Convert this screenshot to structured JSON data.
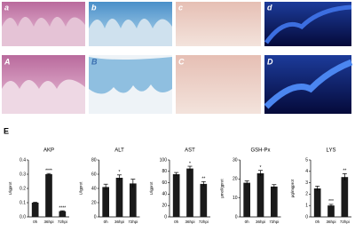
{
  "panels": [
    "a",
    "b",
    "c",
    "d",
    "A",
    "B",
    "C",
    "D"
  ],
  "figure_label": "E",
  "chart_data": [
    {
      "type": "bar",
      "title": "AKP",
      "y_label": "U/gprot",
      "color": "#1a1a1a",
      "categories": [
        "0h",
        "36hpi",
        "72hpi"
      ],
      "values": [
        0.1,
        0.3,
        0.04
      ],
      "errors": [
        0.003,
        0.005,
        0.003
      ],
      "significance": [
        null,
        "****",
        "****"
      ],
      "ylim": [
        0,
        0.4
      ],
      "yticks": [
        {
          "value": 0,
          "label": "0.0"
        },
        {
          "value": 0.1,
          "label": "0.1"
        },
        {
          "value": 0.2,
          "label": "0.2"
        },
        {
          "value": 0.3,
          "label": "0.3"
        },
        {
          "value": 0.4,
          "label": "0.4"
        }
      ]
    },
    {
      "type": "bar",
      "title": "ALT",
      "y_label": "U/gprot",
      "color": "#1a1a1a",
      "categories": [
        "0h",
        "36hpi",
        "72hpi"
      ],
      "values": [
        42,
        55,
        47
      ],
      "errors": [
        4,
        4,
        6
      ],
      "significance": [
        null,
        "*",
        null
      ],
      "ylim": [
        0,
        80
      ],
      "yticks": [
        0,
        20,
        40,
        60,
        80
      ]
    },
    {
      "type": "bar",
      "title": "AST",
      "y_label": "U/gprot",
      "color": "#1a1a1a",
      "categories": [
        "0h",
        "36hpi",
        "72hpi"
      ],
      "values": [
        75,
        85,
        58
      ],
      "errors": [
        3,
        4,
        4
      ],
      "significance": [
        null,
        "*",
        "**"
      ],
      "ylim": [
        0,
        100
      ],
      "yticks": [
        0,
        20,
        40,
        60,
        80,
        100
      ]
    },
    {
      "type": "bar",
      "title": "GSH-Px",
      "y_label": "μmol/gprot",
      "color": "#1a1a1a",
      "categories": [
        "0h",
        "36hpi",
        "72hpi"
      ],
      "values": [
        18,
        23,
        16
      ],
      "errors": [
        1,
        1.5,
        1
      ],
      "significance": [
        null,
        "*",
        null
      ],
      "ylim": [
        0,
        30
      ],
      "yticks": [
        0,
        10,
        20,
        30
      ]
    },
    {
      "type": "bar",
      "title": "LYS",
      "y_label": "μg/mgprot",
      "color": "#1a1a1a",
      "categories": [
        "0h",
        "36hpi",
        "72hpi"
      ],
      "values": [
        2.5,
        1.0,
        3.5
      ],
      "errors": [
        0.2,
        0.1,
        0.3
      ],
      "significance": [
        null,
        "***",
        "**"
      ],
      "ylim": [
        0,
        5
      ],
      "yticks": [
        0,
        1,
        2,
        3,
        4,
        5
      ]
    }
  ]
}
